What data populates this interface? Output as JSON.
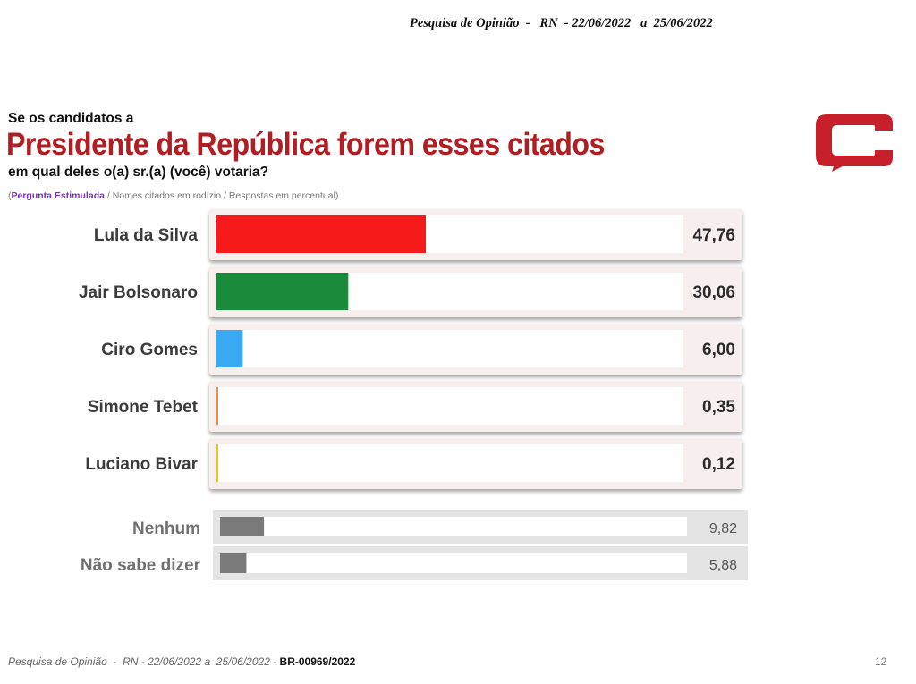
{
  "header": {
    "text": "Pesquisa de Opinião  -   RN  - 22/06/2022   a  25/06/2022"
  },
  "intro": "Se os candidatos a",
  "title": "Presidente da República forem esses citados",
  "question": "em qual deles o(a) sr.(a) (você) votaria?",
  "note": {
    "open": "(",
    "stimulated": "Pergunta Estimulada",
    "rest": " / Nomes citados em rodízio / Respostas em percentual)"
  },
  "footer": {
    "text": "Pesquisa de Opinião  -  RN - 22/06/2022 a  25/06/2022 - ",
    "code": "BR-00969/2022",
    "page": "12"
  },
  "chart_data": {
    "type": "bar",
    "orientation": "horizontal",
    "xlim": [
      0,
      100
    ],
    "candidates": [
      {
        "name": "Lula da Silva",
        "value": 47.76,
        "label": "47,76",
        "color": "#f71a1a"
      },
      {
        "name": "Jair Bolsonaro",
        "value": 30.06,
        "label": "30,06",
        "color": "#1a8b3a"
      },
      {
        "name": "Ciro Gomes",
        "value": 6.0,
        "label": "6,00",
        "color": "#3aa9f4"
      },
      {
        "name": "Simone Tebet",
        "value": 0.35,
        "label": "0,35",
        "color": "#f08a4b"
      },
      {
        "name": "Luciano Bivar",
        "value": 0.12,
        "label": "0,12",
        "color": "#f2c21b"
      }
    ],
    "others": [
      {
        "name": "Nenhum",
        "value": 9.82,
        "label": "9,82",
        "color": "#7a7a7a"
      },
      {
        "name": "Não sabe dizer",
        "value": 5.88,
        "label": "5,88",
        "color": "#7a7a7a"
      }
    ]
  }
}
